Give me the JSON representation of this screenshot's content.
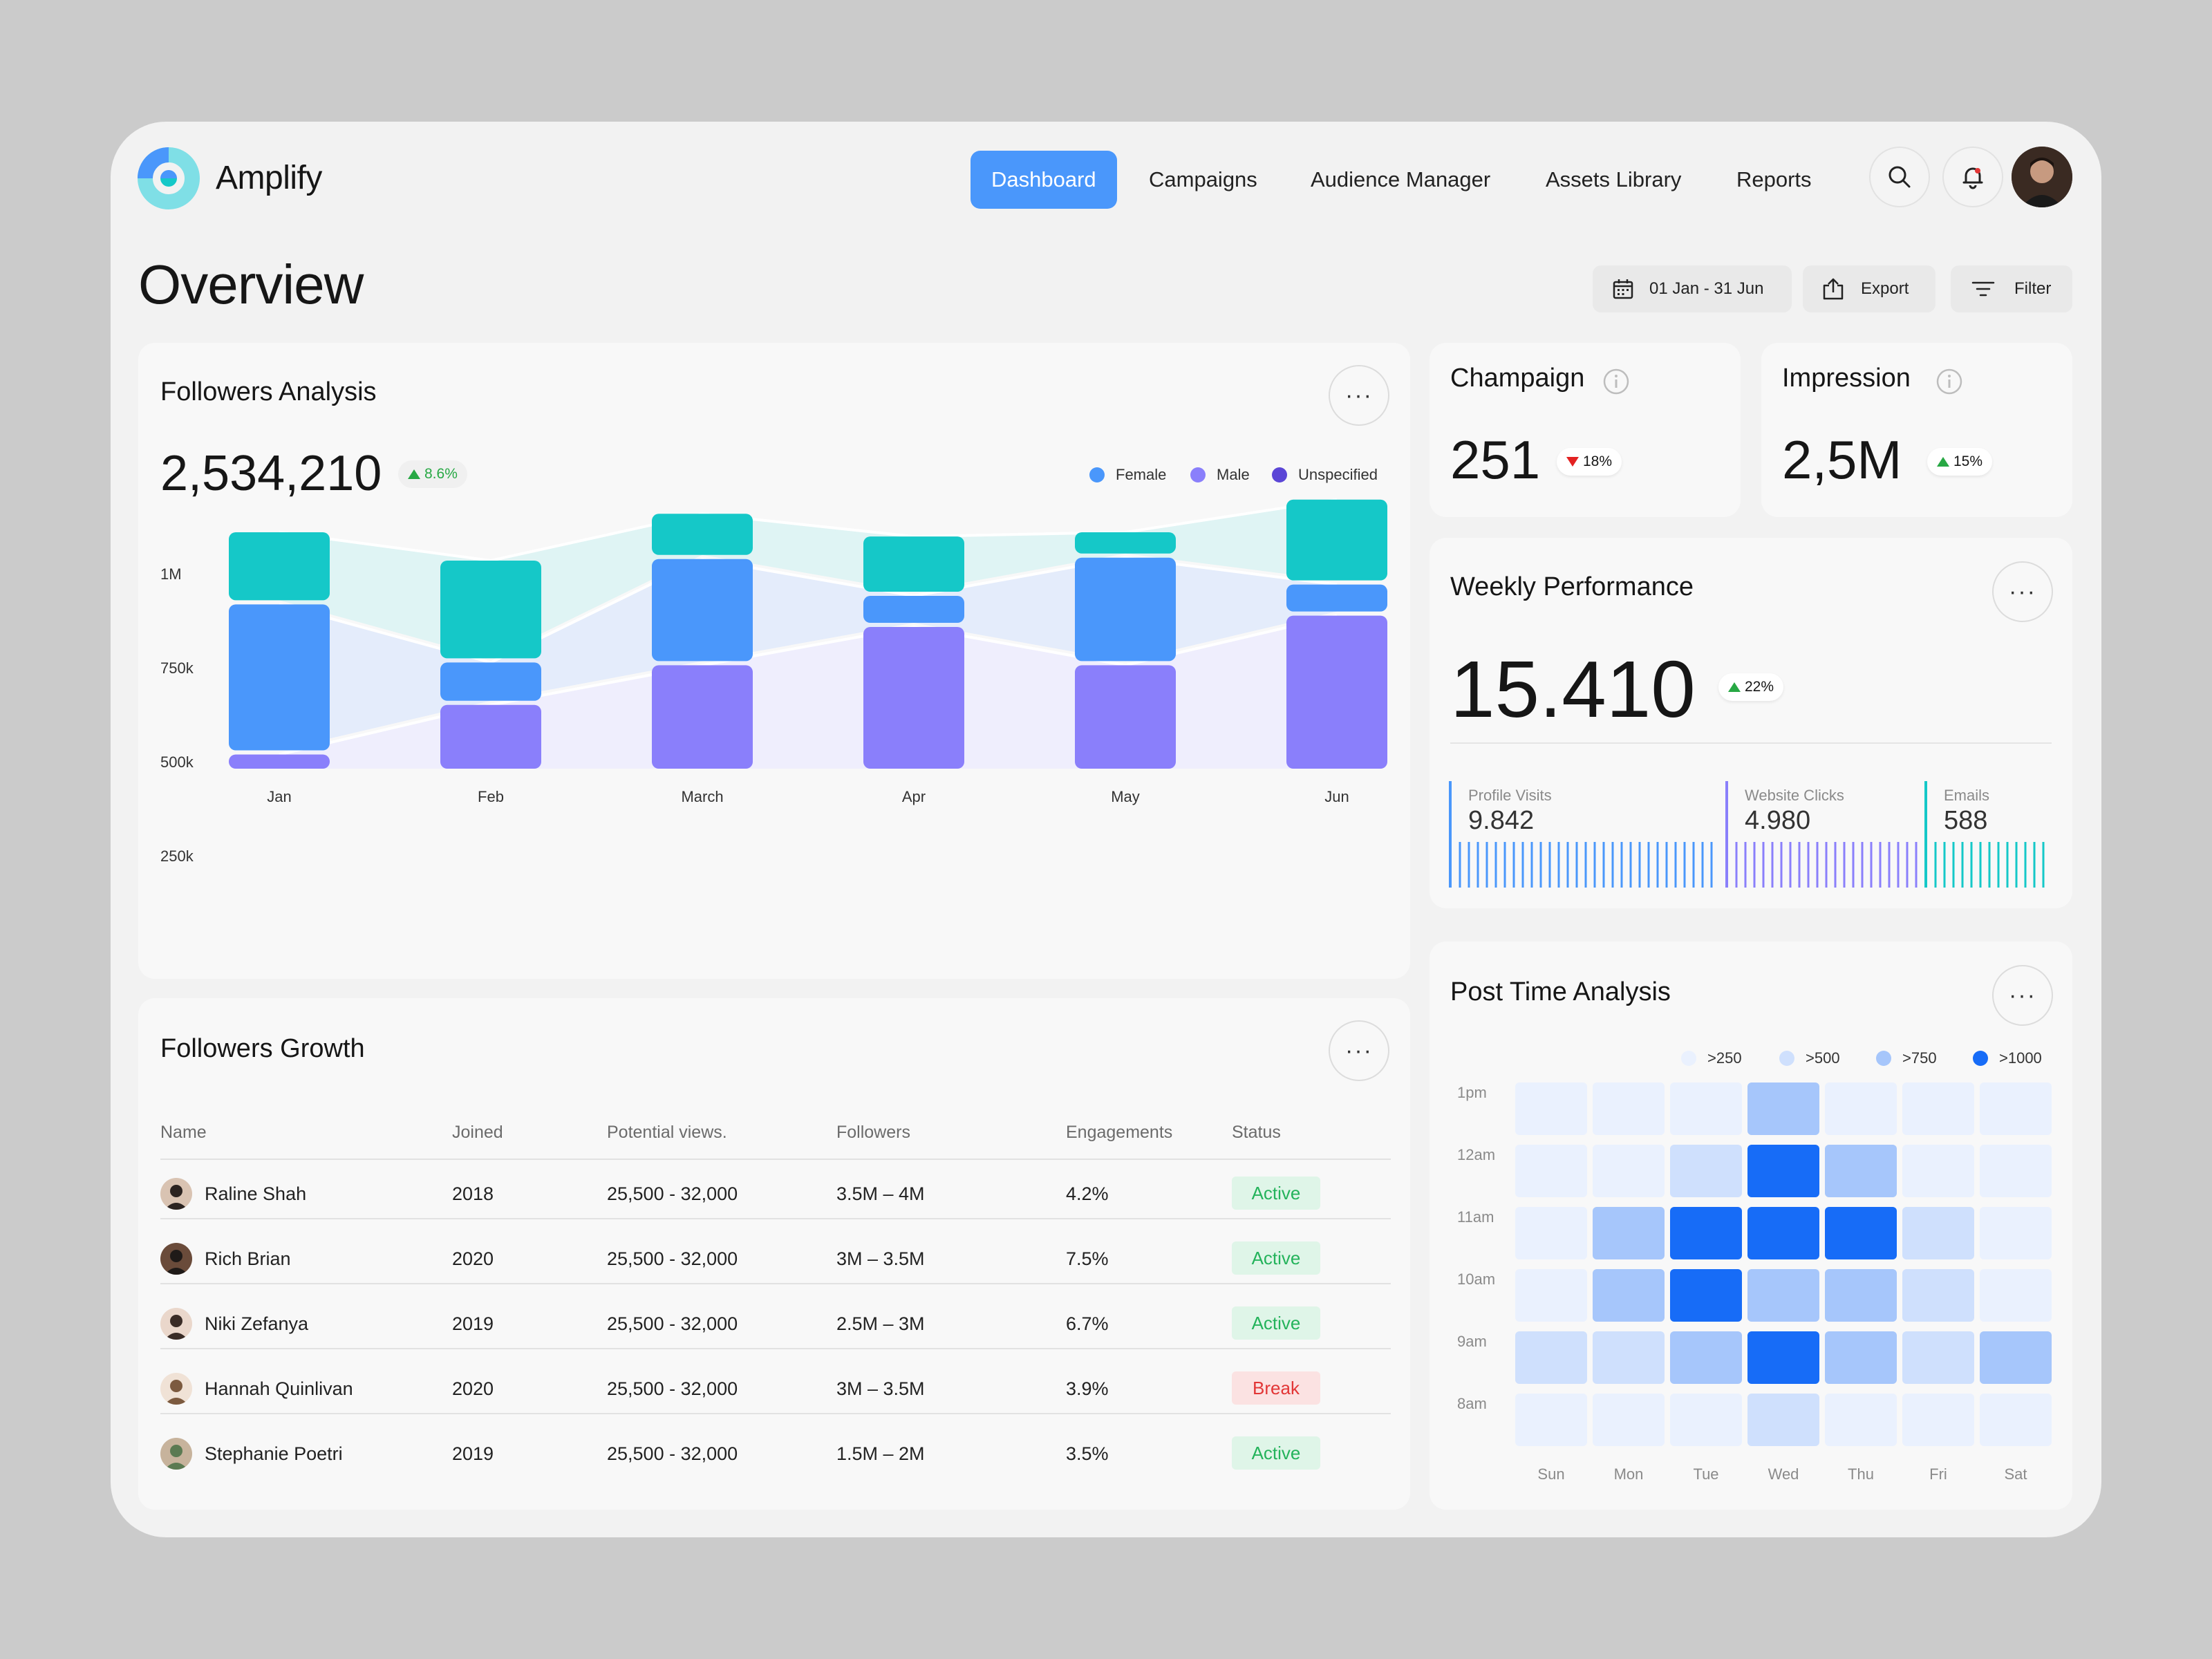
{
  "app": {
    "name": "Amplify"
  },
  "nav": {
    "items": [
      "Dashboard",
      "Campaigns",
      "Audience Manager",
      "Assets Library",
      "Reports"
    ],
    "active": "Dashboard"
  },
  "page": {
    "title": "Overview"
  },
  "toolbar": {
    "date_range": "01 Jan - 31 Jun",
    "export_label": "Export",
    "filter_label": "Filter"
  },
  "followers_analysis": {
    "title": "Followers Analysis",
    "total": "2,534,210",
    "change": "8.6%",
    "legend": [
      {
        "label": "Female",
        "color": "#4a97fb"
      },
      {
        "label": "Male",
        "color": "#8a7ffb"
      },
      {
        "label": "Unspecified",
        "color": "#5b46d6"
      }
    ]
  },
  "chart_data": {
    "type": "bar",
    "stacked": true,
    "categories": [
      "Jan",
      "Feb",
      "March",
      "Apr",
      "May",
      "Jun"
    ],
    "yticks": [
      "1M",
      "750k",
      "500k",
      "250k"
    ],
    "series": [
      {
        "name": "purple",
        "color": "#8a7ffb",
        "values": [
          50,
          225,
          365,
          500,
          365,
          540
        ]
      },
      {
        "name": "blue",
        "color": "#4a97fb",
        "values": [
          515,
          135,
          360,
          95,
          365,
          95
        ]
      },
      {
        "name": "teal",
        "color": "#15c8c8",
        "values": [
          240,
          345,
          145,
          195,
          75,
          285
        ]
      }
    ]
  },
  "campaign": {
    "title": "Champaign",
    "value": "251",
    "change": "18%",
    "direction": "down"
  },
  "impression": {
    "title": "Impression",
    "value": "2,5M",
    "change": "15%",
    "direction": "up"
  },
  "weekly": {
    "title": "Weekly Performance",
    "value": "15.410",
    "change": "22%",
    "metrics": [
      {
        "label": "Profile Visits",
        "value": "9.842",
        "color": "#4a97fb"
      },
      {
        "label": "Website Clicks",
        "value": "4.980",
        "color": "#8a7ffb"
      },
      {
        "label": "Emails",
        "value": "588",
        "color": "#15c8c8"
      }
    ]
  },
  "growth": {
    "title": "Followers Growth",
    "columns": [
      "Name",
      "Joined",
      "Potential views.",
      "Followers",
      "Engagements",
      "Status"
    ],
    "rows": [
      {
        "name": "Raline Shah",
        "joined": "2018",
        "views": "25,500 - 32,000",
        "followers": "3.5M – 4M",
        "eng": "4.2%",
        "status": "Active"
      },
      {
        "name": "Rich Brian",
        "joined": "2020",
        "views": "25,500 - 32,000",
        "followers": "3M – 3.5M",
        "eng": "7.5%",
        "status": "Active"
      },
      {
        "name": "Niki Zefanya",
        "joined": "2019",
        "views": "25,500 - 32,000",
        "followers": "2.5M – 3M",
        "eng": "6.7%",
        "status": "Active"
      },
      {
        "name": "Hannah Quinlivan",
        "joined": "2020",
        "views": "25,500 - 32,000",
        "followers": "3M – 3.5M",
        "eng": "3.9%",
        "status": "Break"
      },
      {
        "name": "Stephanie Poetri",
        "joined": "2019",
        "views": "25,500 - 32,000",
        "followers": "1.5M – 2M",
        "eng": "3.5%",
        "status": "Active"
      }
    ]
  },
  "post_time": {
    "title": "Post Time Analysis",
    "legend": [
      {
        "label": ">250",
        "color": "#eaf1fe"
      },
      {
        "label": ">500",
        "color": "#cfe0fd"
      },
      {
        "label": ">750",
        "color": "#a6c6fb"
      },
      {
        "label": ">1000",
        "color": "#176cf7"
      }
    ],
    "hours": [
      "1pm",
      "12am",
      "11am",
      "10am",
      "9am",
      "8am"
    ],
    "days": [
      "Sun",
      "Mon",
      "Tue",
      "Wed",
      "Thu",
      "Fri",
      "Sat"
    ],
    "levels": [
      [
        0,
        0,
        0,
        2,
        0,
        0,
        0
      ],
      [
        0,
        0,
        1,
        3,
        2,
        0,
        0
      ],
      [
        0,
        2,
        3,
        3,
        3,
        1,
        0
      ],
      [
        0,
        2,
        3,
        2,
        2,
        1,
        0
      ],
      [
        1,
        1,
        2,
        3,
        2,
        1,
        2
      ],
      [
        0,
        0,
        0,
        1,
        0,
        0,
        0
      ]
    ]
  }
}
